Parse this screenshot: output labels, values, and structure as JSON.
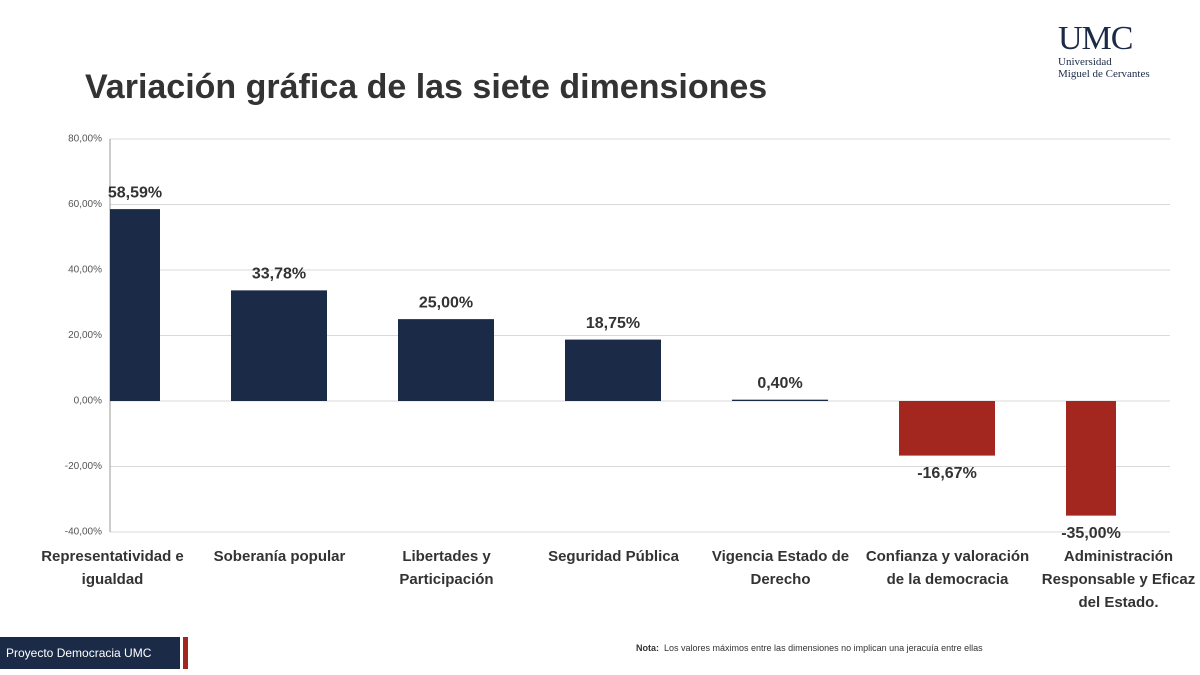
{
  "slide": {
    "logo": {
      "mark": "UMC",
      "line1": "Universidad",
      "line2": "Miguel de Cervantes"
    },
    "footer": "Proyecto Democracia UMC",
    "note": {
      "label": "Nota:",
      "text": "Los valores máximos entre las dimensiones no implican una jeracuía entre ellas"
    }
  },
  "chart_data": {
    "type": "bar",
    "title": "Variación gráfica de las siete dimensiones",
    "categories": [
      "Representatividad e igualdad",
      "Soberanía popular",
      "Libertades y Participación",
      "Seguridad Pública",
      "Vigencia Estado de Derecho",
      "Confianza y valoración de la democracia",
      "Administración Responsable y Eficaz del Estado."
    ],
    "values": [
      58.59,
      33.78,
      25,
      18.75,
      0.4,
      -16.67,
      -35
    ],
    "value_labels": [
      "58,59%",
      "33,78%",
      "25,00%",
      "18,75%",
      "0,40%",
      "-16,67%",
      "-35,00%"
    ],
    "colors": [
      "#1b2a47",
      "#1b2a47",
      "#1b2a47",
      "#1b2a47",
      "#1b2a47",
      "#a3261f",
      "#a3261f"
    ],
    "ylim": [
      -40,
      80
    ],
    "yticks": [
      {
        "value": -40,
        "label": "-40,00%"
      },
      {
        "value": -20,
        "label": "-20,00%"
      },
      {
        "value": 0,
        "label": "0,00%"
      },
      {
        "value": 20,
        "label": "20,00%"
      },
      {
        "value": 40,
        "label": "40,00%"
      },
      {
        "value": 60,
        "label": "60,00%"
      },
      {
        "value": 80,
        "label": "80,00%"
      }
    ],
    "grid": true
  }
}
